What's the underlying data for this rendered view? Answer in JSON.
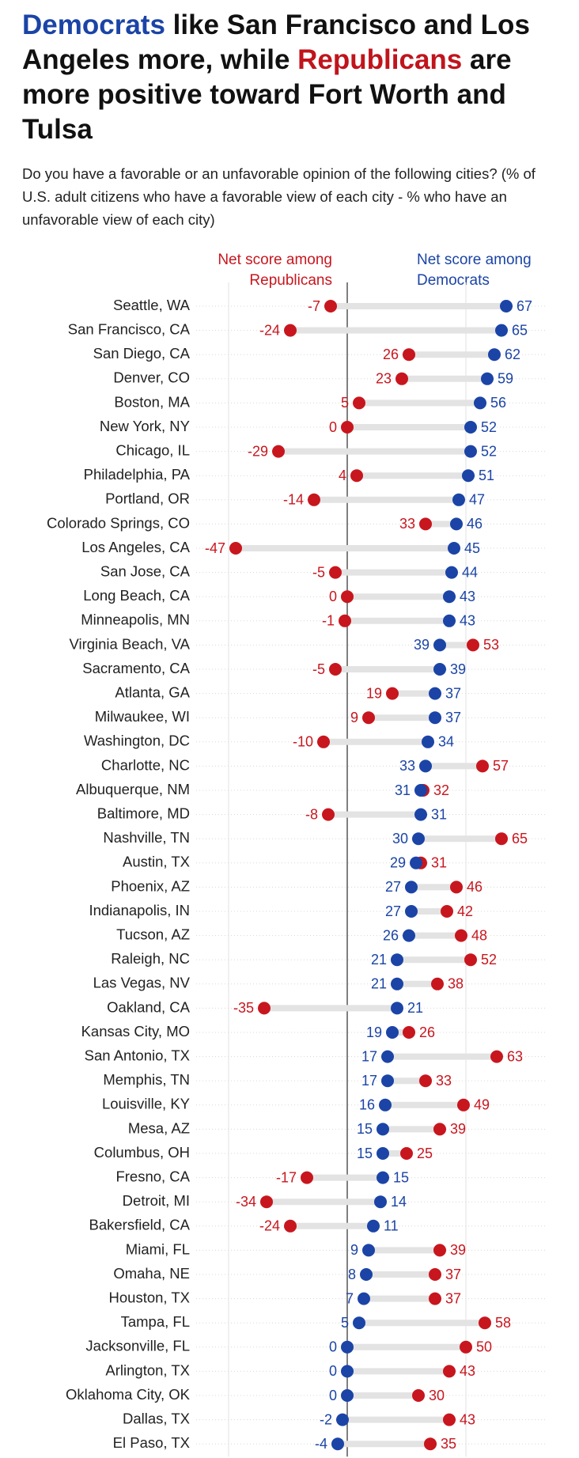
{
  "chart_data": {
    "type": "dumbbell",
    "title_runs": [
      {
        "text": "Democrats",
        "color": "#1b44a6"
      },
      {
        "text": " like San Francisco and Los Angeles more, while ",
        "color": "#111111"
      },
      {
        "text": "Republicans",
        "color": "#c0141c"
      },
      {
        "text": " are more positive toward Fort Worth and Tulsa",
        "color": "#111111"
      }
    ],
    "subtitle": "Do you have a favorable or an unfavorable opinion of the following cities? (% of U.S. adult citizens who have a favorable view of each city - % who have an unfavorable view of each city)",
    "categories": [
      "Seattle, WA",
      "San Francisco, CA",
      "San Diego, CA",
      "Denver, CO",
      "Boston, MA",
      "New York, NY",
      "Chicago, IL",
      "Philadelphia, PA",
      "Portland, OR",
      "Colorado Springs, CO",
      "Los Angeles, CA",
      "San Jose, CA",
      "Long Beach, CA",
      "Minneapolis, MN",
      "Virginia Beach, VA",
      "Sacramento, CA",
      "Atlanta, GA",
      "Milwaukee, WI",
      "Washington, DC",
      "Charlotte, NC",
      "Albuquerque, NM",
      "Baltimore, MD",
      "Nashville, TN",
      "Austin, TX",
      "Phoenix, AZ",
      "Indianapolis, IN",
      "Tucson, AZ",
      "Raleigh, NC",
      "Las Vegas, NV",
      "Oakland, CA",
      "Kansas City, MO",
      "San Antonio, TX",
      "Memphis, TN",
      "Louisville, KY",
      "Mesa, AZ",
      "Columbus, OH",
      "Fresno, CA",
      "Detroit, MI",
      "Bakersfield, CA",
      "Miami, FL",
      "Omaha, NE",
      "Houston, TX",
      "Tampa, FL",
      "Jacksonville, FL",
      "Arlington, TX",
      "Oklahoma City, OK",
      "Dallas, TX",
      "El Paso, TX"
    ],
    "series": [
      {
        "name": "Net score among Republicans",
        "color": "#c8161e",
        "values": [
          -7,
          -24,
          26,
          23,
          5,
          0,
          -29,
          4,
          -14,
          33,
          -47,
          -5,
          0,
          -1,
          53,
          -5,
          19,
          9,
          -10,
          57,
          32,
          -8,
          65,
          31,
          46,
          42,
          48,
          52,
          38,
          -35,
          26,
          63,
          33,
          49,
          39,
          25,
          -17,
          -34,
          -24,
          39,
          37,
          37,
          58,
          50,
          43,
          30,
          43,
          35
        ]
      },
      {
        "name": "Net score among Democrats",
        "color": "#1b44a6",
        "values": [
          67,
          65,
          62,
          59,
          56,
          52,
          52,
          51,
          47,
          46,
          45,
          44,
          43,
          43,
          39,
          39,
          37,
          37,
          34,
          33,
          31,
          31,
          30,
          29,
          27,
          27,
          26,
          21,
          21,
          21,
          19,
          17,
          17,
          16,
          15,
          15,
          15,
          14,
          11,
          9,
          8,
          7,
          5,
          0,
          0,
          0,
          -2,
          -4
        ]
      }
    ],
    "xlim": [
      -63,
      82
    ],
    "xticks": [
      -50,
      0,
      50
    ]
  }
}
